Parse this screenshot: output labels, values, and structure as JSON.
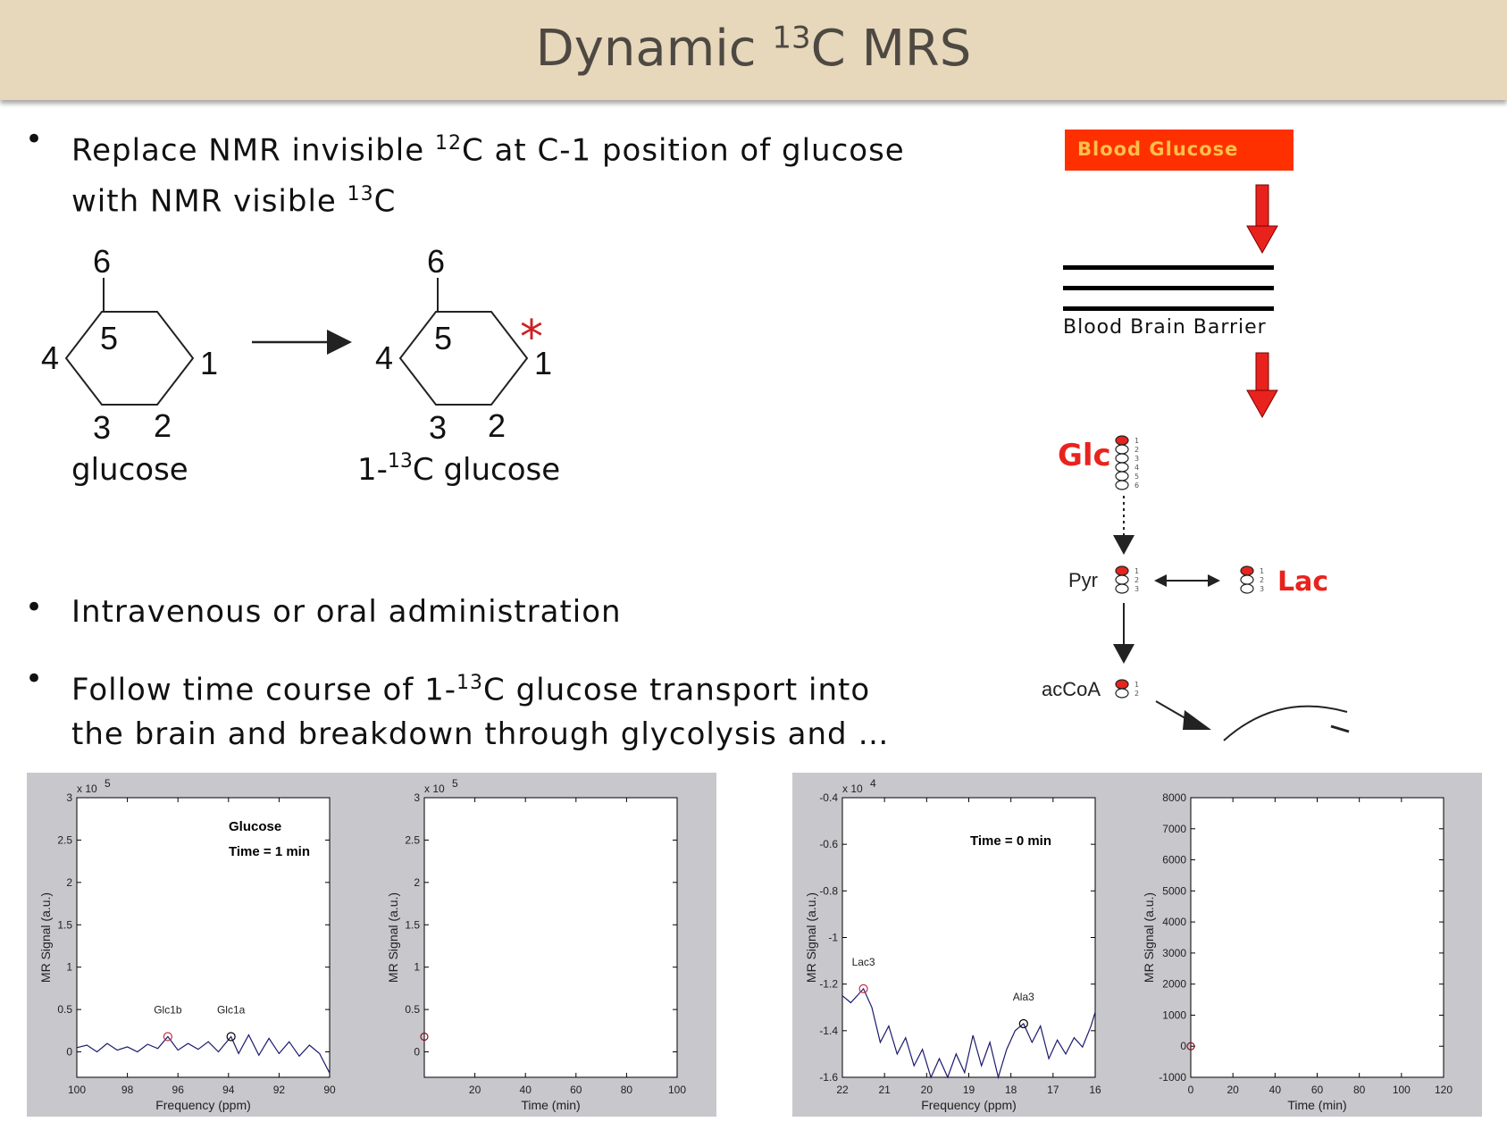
{
  "slide": {
    "title_main": "Dynamic ",
    "title_sup": "13",
    "title_tail": "C MRS"
  },
  "bullets": {
    "b1_l1_a": "Replace NMR invisible ",
    "b1_l1_sup": "12",
    "b1_l1_b": "C at C-1 position of glucose",
    "b1_l2_a": "with NMR visible ",
    "b1_l2_sup": "13",
    "b1_l2_b": "C",
    "b2": "Intravenous or oral administration",
    "b3_l1_a": "Follow time course of 1-",
    "b3_l1_sup": "13",
    "b3_l1_b": "C glucose transport into",
    "b3_l2": "the brain and breakdown through glycolysis and …",
    "bullet_symbol": "•"
  },
  "molecules": {
    "left_caption": "glucose",
    "right_caption_a": "1-",
    "right_caption_sup": "13",
    "right_caption_b": "C glucose",
    "n6": "6",
    "n5": "5",
    "n4": "4",
    "n3": "3",
    "n2": "2",
    "n1": "1",
    "label_star": "*",
    "star_color": "#cc2222"
  },
  "pathway": {
    "blood_glucose": "Blood Glucose",
    "bbb": "Blood Brain Barrier",
    "glc": "Glc",
    "glc_nums": [
      "1",
      "2",
      "3",
      "4",
      "5",
      "6"
    ],
    "pyr": "Pyr",
    "pyr_nums": [
      "1",
      "2",
      "3"
    ],
    "lac": "Lac",
    "lac_nums": [
      "1",
      "2",
      "3"
    ],
    "accoa": "acCoA",
    "accoa_nums": [
      "1",
      "2"
    ],
    "red": "#e8231d",
    "orange_box": "#ff3000"
  },
  "chart_data": [
    {
      "type": "line",
      "title": "",
      "annotations": [
        "Glucose",
        "Time = 1 min"
      ],
      "xlabel": "Frequency (ppm)",
      "ylabel": "MR Signal (a.u.)",
      "xlim": [
        100,
        90
      ],
      "ylim": [
        -0.3,
        3
      ],
      "y_multiplier": "x 10",
      "y_multiplier_exp": "5",
      "x_ticks": [
        "100",
        "98",
        "96",
        "94",
        "92",
        "90"
      ],
      "y_ticks": [
        "0",
        "0.5",
        "1",
        "1.5",
        "2",
        "2.5",
        "3"
      ],
      "peaks": [
        {
          "name": "Glc1b",
          "x": 96.4,
          "y": 0.18
        },
        {
          "name": "Glc1a",
          "x": 93.9,
          "y": 0.18
        }
      ],
      "series": [
        {
          "x": [
            100,
            99.6,
            99.2,
            98.8,
            98.4,
            98,
            97.6,
            97.2,
            96.8,
            96.4,
            96,
            95.6,
            95.2,
            94.8,
            94.4,
            93.9,
            93.6,
            93.2,
            92.8,
            92.4,
            92,
            91.6,
            91.2,
            90.8,
            90.4,
            90
          ],
          "values": [
            0.05,
            0.08,
            0.0,
            0.1,
            0.02,
            0.06,
            0.0,
            0.09,
            0.04,
            0.18,
            0.02,
            0.1,
            0.03,
            0.12,
            0.0,
            0.18,
            -0.02,
            0.2,
            -0.04,
            0.16,
            -0.02,
            0.12,
            -0.05,
            0.08,
            -0.02,
            -0.25
          ]
        }
      ]
    },
    {
      "type": "scatter",
      "title": "",
      "xlabel": "Time (min)",
      "ylabel": "MR Signal (a.u.)",
      "xlim": [
        0,
        100
      ],
      "ylim": [
        -0.3,
        3
      ],
      "y_multiplier": "x 10",
      "y_multiplier_exp": "5",
      "x_ticks": [
        "20",
        "40",
        "60",
        "80",
        "100"
      ],
      "y_ticks": [
        "0",
        "0.5",
        "1",
        "1.5",
        "2",
        "2.5",
        "3"
      ],
      "points": [
        {
          "x": 0,
          "y": 0.18
        }
      ]
    },
    {
      "type": "line",
      "title": "",
      "annotations": [
        "Time = 0 min"
      ],
      "xlabel": "Frequency (ppm)",
      "ylabel": "MR Signal (a.u.)",
      "xlim": [
        22,
        16
      ],
      "ylim": [
        -1.6,
        -0.4
      ],
      "y_multiplier": "x 10",
      "y_multiplier_exp": "4",
      "x_ticks": [
        "22",
        "21",
        "20",
        "19",
        "18",
        "17",
        "16"
      ],
      "y_ticks": [
        "-1.6",
        "-1.4",
        "-1.2",
        "-1",
        "-0.8",
        "-0.6",
        "-0.4"
      ],
      "peaks": [
        {
          "name": "Lac3",
          "x": 21.5,
          "y": -1.22
        },
        {
          "name": "Ala3",
          "x": 17.7,
          "y": -1.37
        }
      ],
      "series": [
        {
          "x": [
            22,
            21.8,
            21.5,
            21.3,
            21.1,
            20.9,
            20.7,
            20.5,
            20.3,
            20.1,
            19.9,
            19.7,
            19.5,
            19.3,
            19.1,
            18.9,
            18.7,
            18.5,
            18.3,
            18.1,
            17.9,
            17.7,
            17.5,
            17.3,
            17.1,
            16.9,
            16.7,
            16.5,
            16.3,
            16.1,
            16
          ],
          "values": [
            -1.25,
            -1.28,
            -1.22,
            -1.3,
            -1.45,
            -1.38,
            -1.5,
            -1.43,
            -1.55,
            -1.48,
            -1.6,
            -1.52,
            -1.6,
            -1.5,
            -1.58,
            -1.42,
            -1.55,
            -1.45,
            -1.6,
            -1.48,
            -1.4,
            -1.37,
            -1.45,
            -1.38,
            -1.52,
            -1.44,
            -1.5,
            -1.43,
            -1.47,
            -1.38,
            -1.32
          ]
        }
      ]
    },
    {
      "type": "scatter",
      "title": "",
      "xlabel": "Time (min)",
      "ylabel": "MR Signal (a.u.)",
      "xlim": [
        0,
        120
      ],
      "ylim": [
        -1000,
        8000
      ],
      "x_ticks": [
        "0",
        "20",
        "40",
        "60",
        "80",
        "100",
        "120"
      ],
      "y_ticks": [
        "-1000",
        "0",
        "1000",
        "2000",
        "3000",
        "4000",
        "5000",
        "6000",
        "7000",
        "8000"
      ],
      "points": [
        {
          "x": 0,
          "y": 0
        }
      ]
    }
  ]
}
